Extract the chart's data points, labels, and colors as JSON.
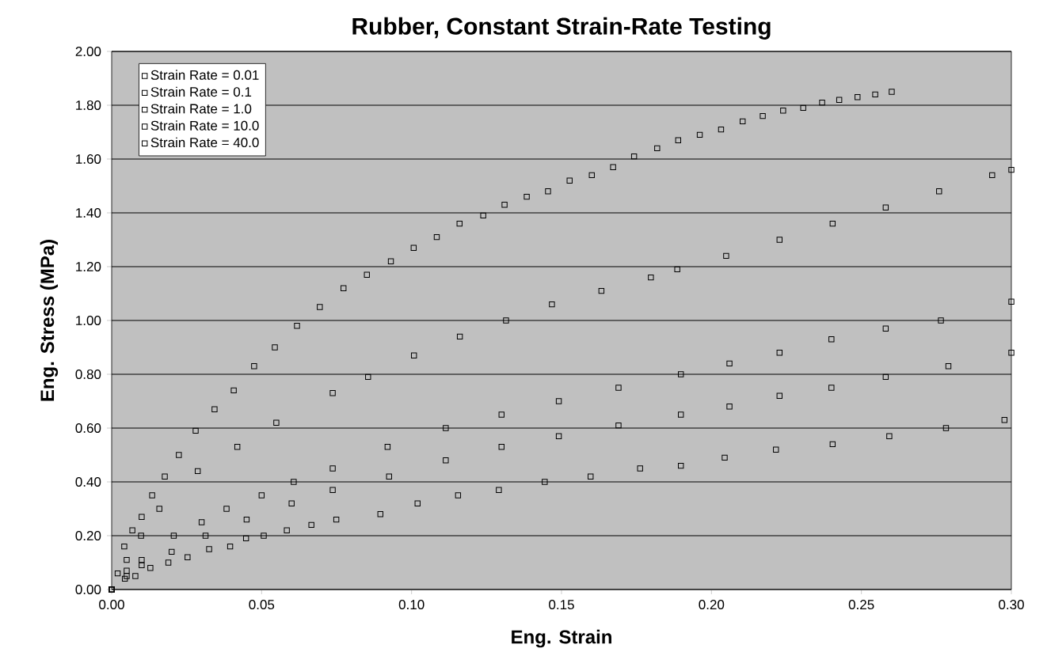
{
  "chart_data": {
    "type": "scatter",
    "title": "Rubber, Constant Strain-Rate Testing",
    "xlabel": "Eng. Strain",
    "ylabel": "Eng. Stress (MPa)",
    "xlim": [
      0,
      0.3
    ],
    "ylim": [
      0,
      2
    ],
    "xticks": [
      {
        "value": 0,
        "label": "0.00"
      },
      0.05,
      {
        "value": 0.1,
        "label": "0.10"
      },
      0.15,
      {
        "value": 0.2,
        "label": "0.20"
      },
      0.25,
      {
        "value": 0.3,
        "label": "0.30"
      }
    ],
    "yticks": [
      {
        "value": 0,
        "label": "0.00"
      },
      {
        "value": 0.2,
        "label": "0.20"
      },
      {
        "value": 0.4,
        "label": "0.40"
      },
      {
        "value": 0.6,
        "label": "0.60"
      },
      {
        "value": 0.8,
        "label": "0.80"
      },
      {
        "value": 1,
        "label": "1.00"
      },
      {
        "value": 1.2,
        "label": "1.20"
      },
      {
        "value": 1.4,
        "label": "1.40"
      },
      {
        "value": 1.6,
        "label": "1.60"
      },
      {
        "value": 1.8,
        "label": "1.80"
      },
      {
        "value": 2,
        "label": "2.00"
      }
    ],
    "grid": "y",
    "legend": "top left",
    "marker": "square",
    "series": [
      {
        "name": "Strain Rate = 0.01",
        "color": "#000000",
        "x": [
          0,
          0.0044,
          0.0079,
          0.0129,
          0.0189,
          0.0253,
          0.0325,
          0.0395,
          0.0448,
          0.0507,
          0.0584,
          0.0666,
          0.0749,
          0.0896,
          0.102,
          0.1155,
          0.1291,
          0.1444,
          0.1597,
          0.1762,
          0.1898,
          0.2044,
          0.2215,
          0.2404,
          0.2593,
          0.2782,
          0.2977
        ],
        "values": [
          0,
          0.04,
          0.05,
          0.08,
          0.1,
          0.12,
          0.15,
          0.16,
          0.19,
          0.2,
          0.22,
          0.24,
          0.26,
          0.28,
          0.32,
          0.35,
          0.37,
          0.4,
          0.42,
          0.45,
          0.46,
          0.49,
          0.52,
          0.54,
          0.57,
          0.6,
          0.63
        ]
      },
      {
        "name": "Strain Rate = 0.1",
        "color": "#000000",
        "x": [
          0,
          0.005,
          0.01,
          0.02,
          0.0313,
          0.045,
          0.06,
          0.0737,
          0.0925,
          0.1114,
          0.13,
          0.1491,
          0.169,
          0.1898,
          0.206,
          0.2227,
          0.24,
          0.2581,
          0.279,
          0.3
        ],
        "values": [
          0,
          0.05,
          0.09,
          0.14,
          0.2,
          0.26,
          0.32,
          0.37,
          0.42,
          0.48,
          0.53,
          0.57,
          0.61,
          0.65,
          0.68,
          0.72,
          0.75,
          0.79,
          0.83,
          0.88
        ]
      },
      {
        "name": "Strain Rate = 1.0",
        "color": "#000000",
        "x": [
          0,
          0.005,
          0.01,
          0.0207,
          0.03,
          0.0383,
          0.05,
          0.0607,
          0.0737,
          0.092,
          0.1114,
          0.13,
          0.1491,
          0.169,
          0.1898,
          0.206,
          0.2227,
          0.24,
          0.2581,
          0.2765,
          0.3
        ],
        "values": [
          0,
          0.07,
          0.11,
          0.2,
          0.25,
          0.3,
          0.35,
          0.4,
          0.45,
          0.53,
          0.6,
          0.65,
          0.7,
          0.75,
          0.8,
          0.84,
          0.88,
          0.93,
          0.97,
          1.0,
          1.07
        ]
      },
      {
        "name": "Strain Rate = 10.0",
        "color": "#000000",
        "x": [
          0,
          0.002,
          0.005,
          0.0098,
          0.0159,
          0.0287,
          0.0419,
          0.0549,
          0.0737,
          0.0855,
          0.1008,
          0.1161,
          0.1315,
          0.1468,
          0.1633,
          0.1798,
          0.1886,
          0.2049,
          0.2227,
          0.2404,
          0.2581,
          0.2759,
          0.2936,
          0.3
        ],
        "values": [
          0,
          0.06,
          0.11,
          0.2,
          0.3,
          0.44,
          0.53,
          0.62,
          0.73,
          0.79,
          0.87,
          0.94,
          1.0,
          1.06,
          1.11,
          1.16,
          1.19,
          1.24,
          1.3,
          1.36,
          1.42,
          1.48,
          1.54,
          1.56
        ]
      },
      {
        "name": "Strain Rate = 40.0",
        "color": "#000000",
        "x": [
          0,
          0.0042,
          0.0069,
          0.01,
          0.0135,
          0.0177,
          0.0224,
          0.028,
          0.0343,
          0.0407,
          0.0475,
          0.0544,
          0.0618,
          0.0694,
          0.0773,
          0.0851,
          0.0931,
          0.1007,
          0.1084,
          0.116,
          0.1239,
          0.131,
          0.1384,
          0.1455,
          0.1527,
          0.1601,
          0.1672,
          0.1742,
          0.1819,
          0.1889,
          0.1961,
          0.2032,
          0.2104,
          0.2171,
          0.2239,
          0.2306,
          0.2369,
          0.2426,
          0.2487,
          0.2546,
          0.2601
        ],
        "values": [
          0,
          0.16,
          0.22,
          0.27,
          0.35,
          0.42,
          0.5,
          0.59,
          0.67,
          0.74,
          0.83,
          0.9,
          0.98,
          1.05,
          1.12,
          1.17,
          1.22,
          1.27,
          1.31,
          1.36,
          1.39,
          1.43,
          1.46,
          1.48,
          1.52,
          1.54,
          1.57,
          1.61,
          1.64,
          1.67,
          1.69,
          1.71,
          1.74,
          1.76,
          1.78,
          1.79,
          1.81,
          1.82,
          1.83,
          1.84,
          1.85
        ]
      }
    ]
  }
}
